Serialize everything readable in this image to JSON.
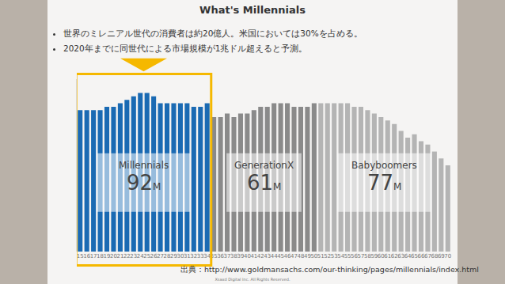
{
  "title": "What's Millennials",
  "bullets": [
    "世界のミレニアル世代の消費者は約20億人。米国においては30%を占める。",
    "2020年までに同世代による市場規模が1兆ドル超えると予測。"
  ],
  "source": "出典：http://www.goldmansachs.com/our-thinking/pages/millennials/index.html",
  "copyright": "Xsaxd Digital Inc. All Rights Reserved.",
  "chart_data": {
    "type": "bar",
    "categories": [
      15,
      16,
      17,
      18,
      19,
      20,
      21,
      22,
      23,
      24,
      25,
      26,
      27,
      28,
      29,
      30,
      31,
      32,
      33,
      34,
      35,
      36,
      37,
      38,
      39,
      40,
      41,
      42,
      43,
      44,
      45,
      46,
      47,
      48,
      49,
      50,
      51,
      52,
      53,
      54,
      55,
      56,
      57,
      58,
      59,
      60,
      61,
      62,
      63,
      64,
      65,
      66,
      67,
      68,
      69,
      70
    ],
    "series": [
      {
        "name": "Millennials",
        "color": "#1a6ab3",
        "total": 92,
        "total_unit": "M",
        "values": [
          4.1,
          4.1,
          4.1,
          4.1,
          4.2,
          4.2,
          4.3,
          4.4,
          4.5,
          4.6,
          4.6,
          4.5,
          4.3,
          4.3,
          4.3,
          4.3,
          4.3,
          4.2,
          4.2,
          4.3,
          null,
          null,
          null,
          null,
          null,
          null,
          null,
          null,
          null,
          null,
          null,
          null,
          null,
          null,
          null,
          null,
          null,
          null,
          null,
          null,
          null,
          null,
          null,
          null,
          null,
          null,
          null,
          null,
          null,
          null,
          null,
          null,
          null,
          null,
          null,
          null
        ]
      },
      {
        "name": "GenerationX",
        "color": "#8a8a8a",
        "total": 61,
        "total_unit": "M",
        "values": [
          null,
          null,
          null,
          null,
          null,
          null,
          null,
          null,
          null,
          null,
          null,
          null,
          null,
          null,
          null,
          null,
          null,
          null,
          null,
          null,
          3.9,
          3.9,
          4.0,
          3.9,
          4.0,
          4.0,
          4.1,
          4.2,
          4.2,
          4.3,
          4.3,
          4.3,
          4.2,
          4.2,
          4.2,
          4.3,
          null,
          null,
          null,
          null,
          null,
          null,
          null,
          null,
          null,
          null,
          null,
          null,
          null,
          null,
          null,
          null,
          null,
          null,
          null,
          null
        ]
      },
      {
        "name": "Babyboomers",
        "color": "#b4b4b4",
        "total": 77,
        "total_unit": "M",
        "values": [
          null,
          null,
          null,
          null,
          null,
          null,
          null,
          null,
          null,
          null,
          null,
          null,
          null,
          null,
          null,
          null,
          null,
          null,
          null,
          null,
          null,
          null,
          null,
          null,
          null,
          null,
          null,
          null,
          null,
          null,
          null,
          null,
          null,
          null,
          null,
          null,
          4.3,
          4.3,
          4.3,
          4.3,
          4.3,
          4.2,
          4.2,
          4.1,
          4.0,
          3.9,
          3.8,
          3.7,
          3.5,
          3.3,
          3.4,
          3.2,
          3.1,
          2.9,
          2.7,
          2.5
        ]
      }
    ],
    "ylim": [
      0,
      5
    ],
    "tick_labels": "x",
    "grid": false
  }
}
